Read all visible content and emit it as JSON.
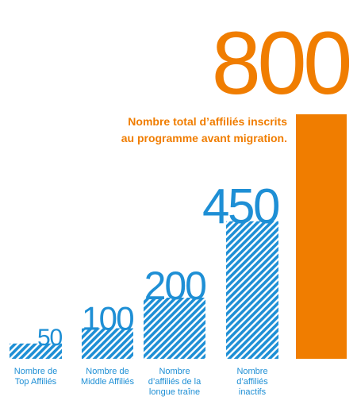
{
  "chart_data": {
    "type": "bar",
    "categories": [
      [
        "Nombre de",
        "Top Affiliés"
      ],
      [
        "Nombre de",
        "Middle Affiliés"
      ],
      [
        "Nombre",
        "d’affiliés de la",
        "longue traîne"
      ],
      [
        "Nombre",
        "d’affiliés",
        "inactifs"
      ],
      null
    ],
    "values": [
      50,
      100,
      200,
      450,
      800
    ],
    "colors": [
      "#1e8fd5",
      "#1e8fd5",
      "#1e8fd5",
      "#1e8fd5",
      "#f07d00"
    ],
    "hatched": [
      true,
      true,
      true,
      true,
      false
    ],
    "annotation": [
      "Nombre total d’affiliés inscrits",
      "au programme avant migration."
    ],
    "ylim": [
      0,
      800
    ]
  }
}
